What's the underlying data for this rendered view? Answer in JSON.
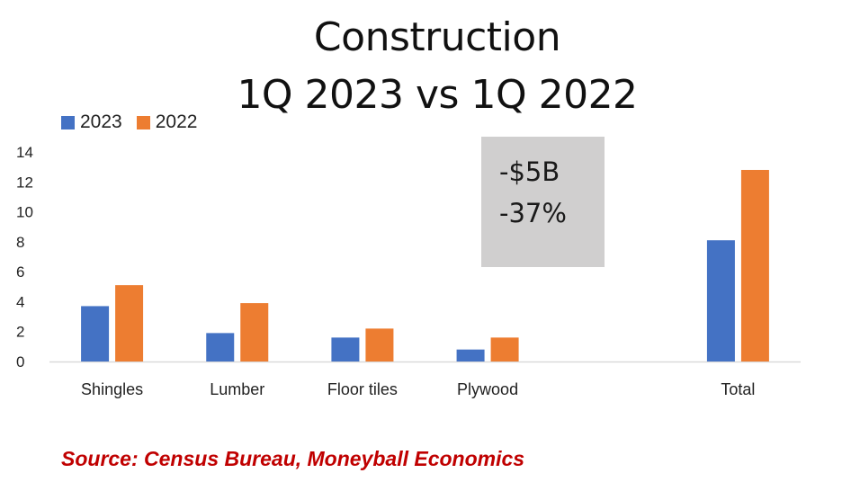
{
  "colors": {
    "series_2023": "#4472c4",
    "series_2022": "#ed7d31",
    "axis": "#d9d9d9",
    "annotation_bg": "#d0cfcf",
    "source_text": "#c00000"
  },
  "annotation": {
    "line1": "-$5B",
    "line2": "-37%"
  },
  "source": "Source: Census Bureau, Moneyball Economics",
  "chart_data": {
    "type": "bar",
    "title": [
      "Construction",
      "1Q 2023 vs 1Q 2022"
    ],
    "categories": [
      "Shingles",
      "Lumber",
      "Floor tiles",
      "Plywood",
      "",
      "Total"
    ],
    "series": [
      {
        "name": "2023",
        "values": [
          3.7,
          1.9,
          1.6,
          0.8,
          null,
          8.1
        ]
      },
      {
        "name": "2022",
        "values": [
          5.1,
          3.9,
          2.2,
          1.6,
          null,
          12.8
        ]
      }
    ],
    "ylim": [
      0,
      14
    ],
    "yticks": [
      0,
      2,
      4,
      6,
      8,
      10,
      12,
      14
    ],
    "legend_position": "top-left",
    "grid": false
  }
}
